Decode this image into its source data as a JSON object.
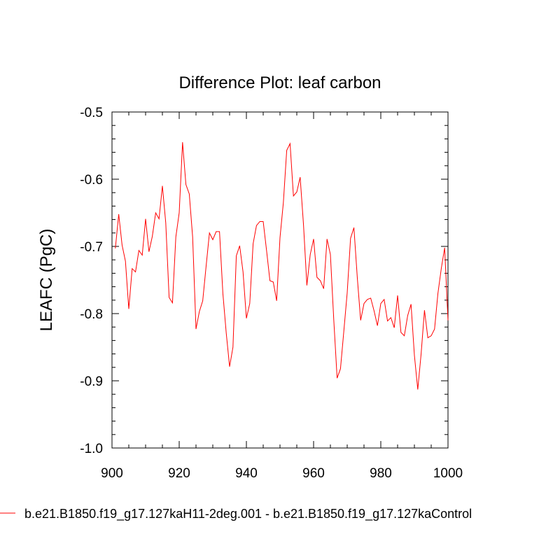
{
  "chart_data": {
    "type": "line",
    "title": "Difference Plot: leaf carbon",
    "xlabel": "",
    "ylabel": "LEAFC  (PgC)",
    "xlim": [
      900,
      1000
    ],
    "ylim": [
      -1.0,
      -0.5
    ],
    "xticks": [
      900,
      920,
      940,
      960,
      980,
      1000
    ],
    "xtick_labels": [
      "900",
      "920",
      "940",
      "960",
      "980",
      "1000"
    ],
    "yticks": [
      -1.0,
      -0.9,
      -0.8,
      -0.7,
      -0.6,
      -0.5
    ],
    "ytick_labels": [
      "-1.0",
      "-0.9",
      "-0.8",
      "-0.7",
      "-0.6",
      "-0.5"
    ],
    "grid": false,
    "legend_position": "bottom",
    "series": [
      {
        "name": "b.e21.B1850.f19_g17.127kaH11-2deg.001 - b.e21.B1850.f19_g17.127kaControl",
        "color": "#ff0000",
        "x": [
          901,
          902,
          903,
          904,
          905,
          906,
          907,
          908,
          909,
          910,
          911,
          912,
          913,
          914,
          915,
          916,
          917,
          918,
          919,
          920,
          921,
          922,
          923,
          924,
          925,
          926,
          927,
          928,
          929,
          930,
          931,
          932,
          933,
          934,
          935,
          936,
          937,
          938,
          939,
          940,
          941,
          942,
          943,
          944,
          945,
          946,
          947,
          948,
          949,
          950,
          951,
          952,
          953,
          954,
          955,
          956,
          957,
          958,
          959,
          960,
          961,
          962,
          963,
          964,
          965,
          966,
          967,
          968,
          969,
          970,
          971,
          972,
          973,
          974,
          975,
          976,
          977,
          978,
          979,
          980,
          981,
          982,
          983,
          984,
          985,
          986,
          987,
          988,
          989,
          990,
          991,
          992,
          993,
          994,
          995,
          996,
          997,
          998,
          999,
          1000
        ],
        "values": [
          -0.703,
          -0.652,
          -0.698,
          -0.722,
          -0.793,
          -0.733,
          -0.738,
          -0.706,
          -0.713,
          -0.659,
          -0.708,
          -0.685,
          -0.65,
          -0.659,
          -0.61,
          -0.665,
          -0.776,
          -0.784,
          -0.686,
          -0.65,
          -0.545,
          -0.608,
          -0.622,
          -0.686,
          -0.823,
          -0.797,
          -0.781,
          -0.73,
          -0.68,
          -0.69,
          -0.678,
          -0.678,
          -0.77,
          -0.829,
          -0.879,
          -0.85,
          -0.714,
          -0.699,
          -0.738,
          -0.807,
          -0.785,
          -0.696,
          -0.669,
          -0.663,
          -0.663,
          -0.706,
          -0.751,
          -0.753,
          -0.781,
          -0.687,
          -0.635,
          -0.557,
          -0.547,
          -0.625,
          -0.619,
          -0.597,
          -0.668,
          -0.758,
          -0.712,
          -0.689,
          -0.746,
          -0.751,
          -0.763,
          -0.689,
          -0.712,
          -0.809,
          -0.896,
          -0.882,
          -0.826,
          -0.769,
          -0.688,
          -0.672,
          -0.746,
          -0.81,
          -0.785,
          -0.779,
          -0.777,
          -0.796,
          -0.818,
          -0.785,
          -0.779,
          -0.811,
          -0.806,
          -0.821,
          -0.773,
          -0.828,
          -0.833,
          -0.803,
          -0.786,
          -0.862,
          -0.913,
          -0.86,
          -0.795,
          -0.836,
          -0.833,
          -0.823,
          -0.77,
          -0.733,
          -0.702,
          -0.81
        ]
      }
    ]
  }
}
